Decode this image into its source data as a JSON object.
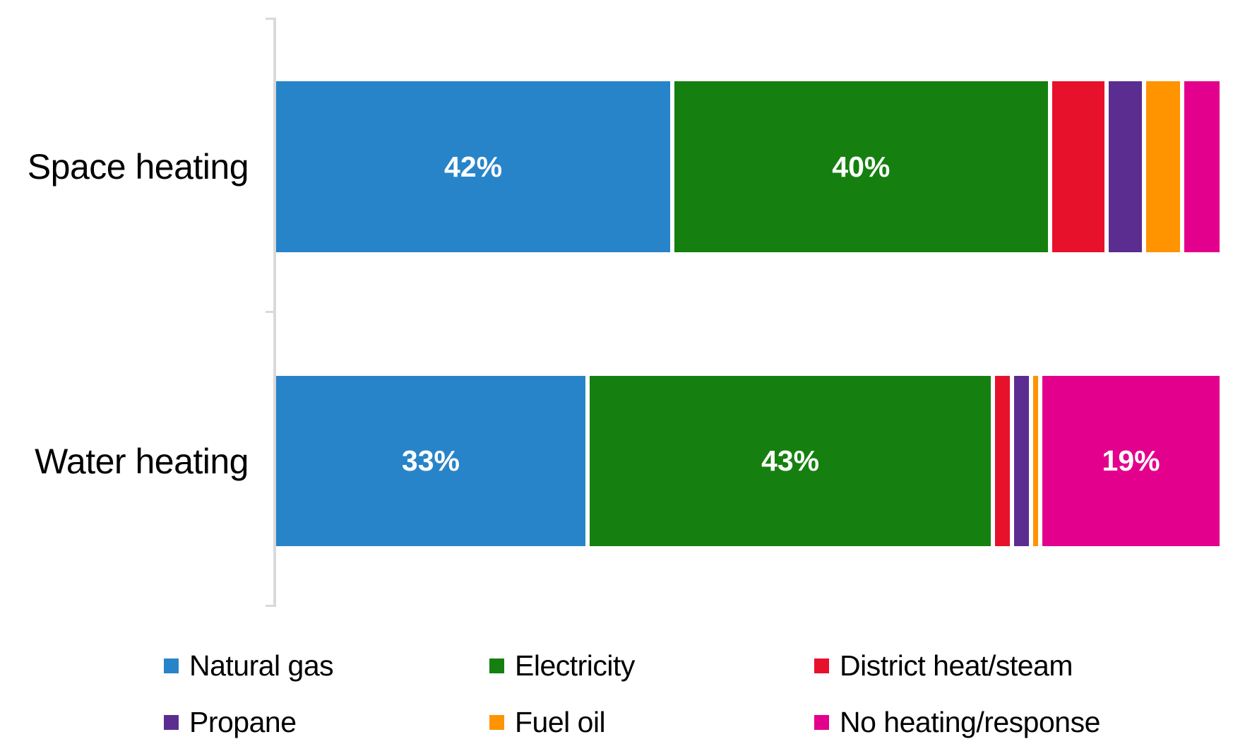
{
  "canvas": {
    "background": "#FFFFFF"
  },
  "chart_data": {
    "type": "bar",
    "orientation": "horizontal-stacked",
    "title": "",
    "xlabel": "",
    "ylabel": "",
    "xlim": [
      0,
      100
    ],
    "value_format": "percent",
    "grid": false,
    "legend_position": "bottom",
    "legend_rows": 2,
    "legend_columns": 3,
    "axis_color": "#D9D9D9",
    "data_label_color": "#FFFFFF",
    "category_label_color": "#000000",
    "categories": [
      "Space heating",
      "Water heating"
    ],
    "series": [
      {
        "name": "Natural gas",
        "color": "#2884C8",
        "values": [
          42,
          33
        ],
        "labels": [
          "42%",
          "33%"
        ]
      },
      {
        "name": "Electricity",
        "color": "#15800F",
        "values": [
          40,
          43
        ],
        "labels": [
          "40%",
          "43%"
        ]
      },
      {
        "name": "District heat/steam",
        "color": "#E8112B",
        "values": [
          6,
          2
        ],
        "labels": [
          null,
          null
        ]
      },
      {
        "name": "Propane",
        "color": "#5B2D90",
        "values": [
          4,
          2
        ],
        "labels": [
          null,
          null
        ]
      },
      {
        "name": "Fuel oil",
        "color": "#FF9300",
        "values": [
          4,
          1
        ],
        "labels": [
          null,
          null
        ]
      },
      {
        "name": "No heating/response",
        "color": "#E3008C",
        "values": [
          4,
          19
        ],
        "labels": [
          null,
          "19%"
        ]
      }
    ]
  }
}
